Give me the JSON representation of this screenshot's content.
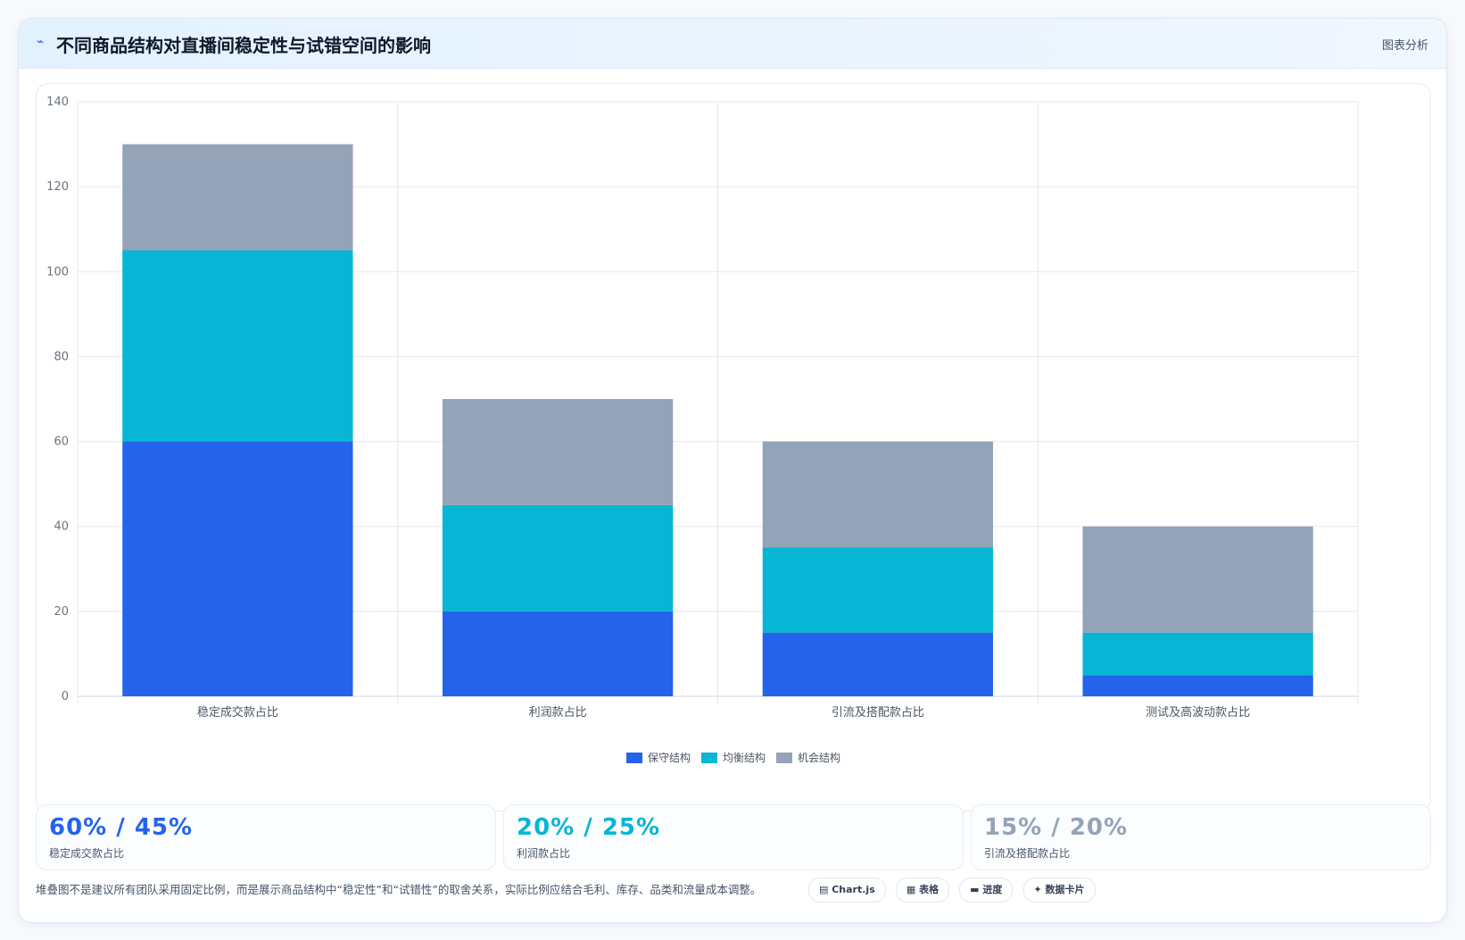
{
  "header": {
    "icon": "lightning-icon",
    "title": "不同商品结构对直播间稳定性与试错空间的影响",
    "tag": "图表分析"
  },
  "chart_data": {
    "type": "bar",
    "stacked": true,
    "categories": [
      "稳定成交款占比",
      "利润款占比",
      "引流及搭配款占比",
      "测试及高波动款占比"
    ],
    "series": [
      {
        "name": "保守结构",
        "color": "#2563eb",
        "values": [
          60,
          20,
          15,
          5
        ]
      },
      {
        "name": "均衡结构",
        "color": "#06b6d4",
        "values": [
          45,
          25,
          20,
          10
        ]
      },
      {
        "name": "机会结构",
        "color": "#94a3b8",
        "values": [
          25,
          25,
          25,
          25
        ]
      }
    ],
    "ylim": [
      0,
      140
    ],
    "yticks": [
      0,
      20,
      40,
      60,
      80,
      100,
      120,
      140
    ],
    "grid": true,
    "legend_position": "bottom"
  },
  "kpis": [
    {
      "value": "60% / 45%",
      "label": "稳定成交款占比",
      "color": "#2563eb"
    },
    {
      "value": "20% / 25%",
      "label": "利润款占比",
      "color": "#06b6d4"
    },
    {
      "value": "15% / 20%",
      "label": "引流及搭配款占比",
      "color": "#94a3b8"
    }
  ],
  "footer": {
    "note": "堆叠图不是建议所有团队采用固定比例，而是展示商品结构中“稳定性”和“试错性”的取舍关系，实际比例应结合毛利、库存、品类和流量成本调整。",
    "chips": [
      {
        "icon": "chart-icon",
        "label": "Chart.js"
      },
      {
        "icon": "table-icon",
        "label": "表格"
      },
      {
        "icon": "progress-icon",
        "label": "进度"
      },
      {
        "icon": "sparkle-icon",
        "label": "数据卡片"
      }
    ]
  }
}
